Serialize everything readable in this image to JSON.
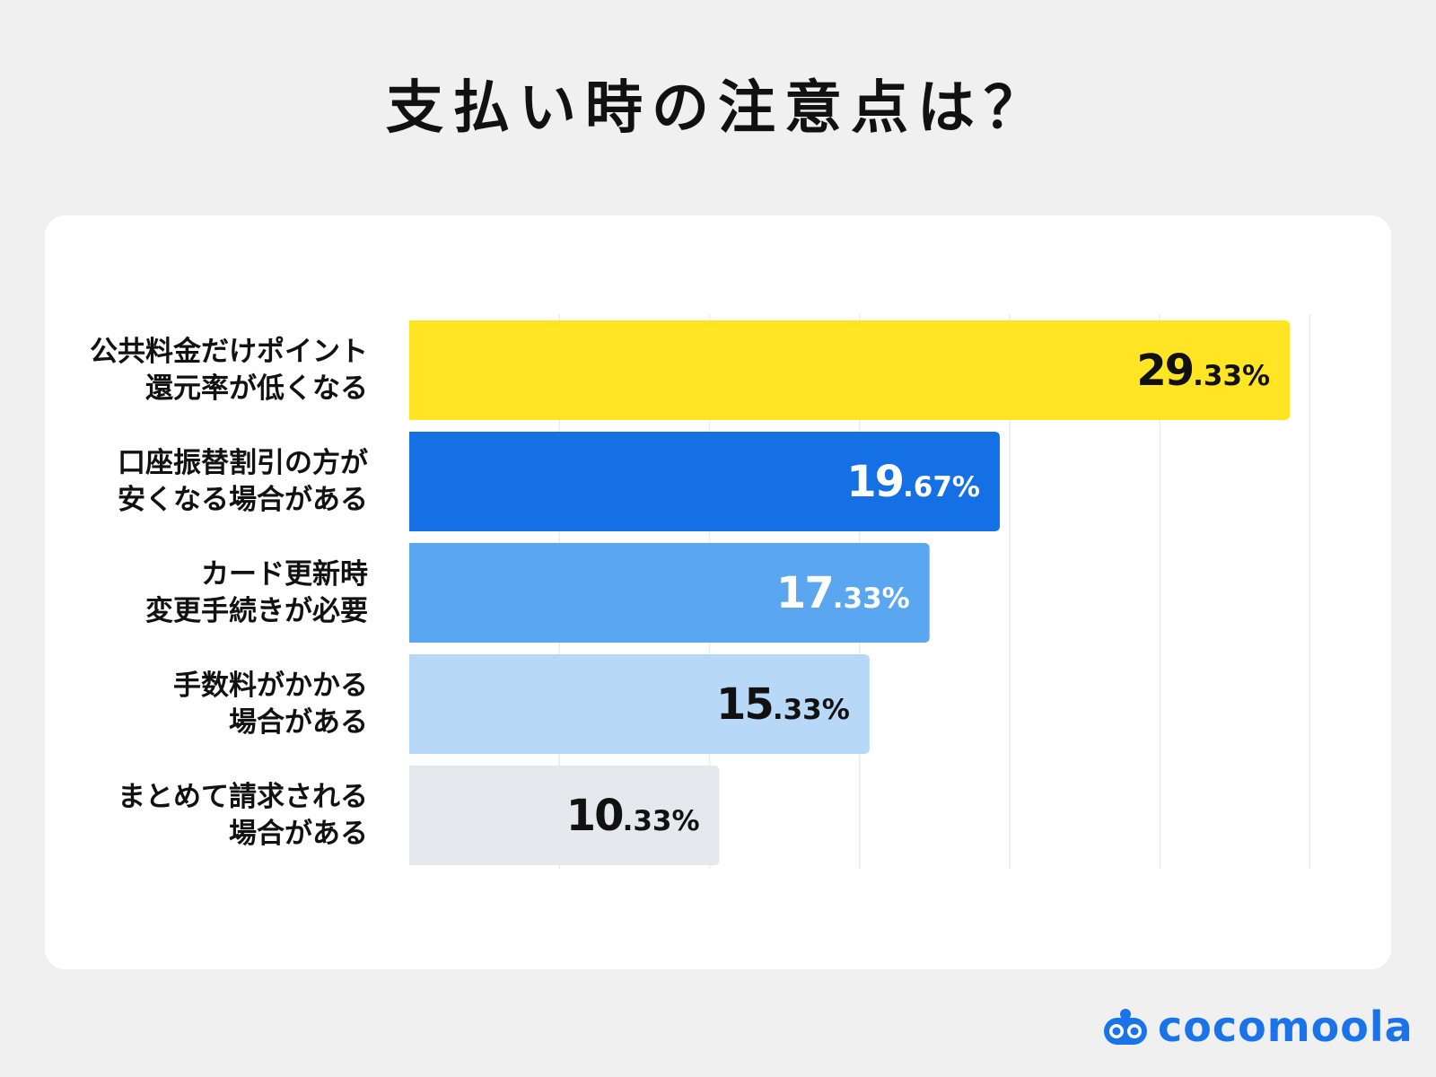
{
  "chart_data": {
    "type": "bar",
    "orientation": "horizontal",
    "title": "支払い時の注意点は？",
    "categories": [
      [
        "公共料金だけポイント",
        "還元率が低くなる"
      ],
      [
        "口座振替割引の方が",
        "安くなる場合がある"
      ],
      [
        "カード更新時",
        "変更手続きが必要"
      ],
      [
        "手数料がかかる",
        "場合がある"
      ],
      [
        "まとめて請求される",
        "場合がある"
      ]
    ],
    "values": [
      29.33,
      19.67,
      17.33,
      15.33,
      10.33
    ],
    "value_labels": [
      {
        "int": "29",
        "dec": ".33%"
      },
      {
        "int": "19",
        "dec": ".67%"
      },
      {
        "int": "17",
        "dec": ".33%"
      },
      {
        "int": "15",
        "dec": ".33%"
      },
      {
        "int": "10",
        "dec": ".33%"
      }
    ],
    "bar_colors": [
      "#ffe524",
      "#1570e6",
      "#5aa6f1",
      "#b8d8f7",
      "#e5e8ed"
    ],
    "value_label_colors": [
      "#111111",
      "#ffffff",
      "#ffffff",
      "#111111",
      "#111111"
    ],
    "xlim": [
      0,
      30
    ],
    "grid": true,
    "legend": "none"
  },
  "brand": {
    "name": "cocomoola",
    "color": "#1a73e8"
  }
}
